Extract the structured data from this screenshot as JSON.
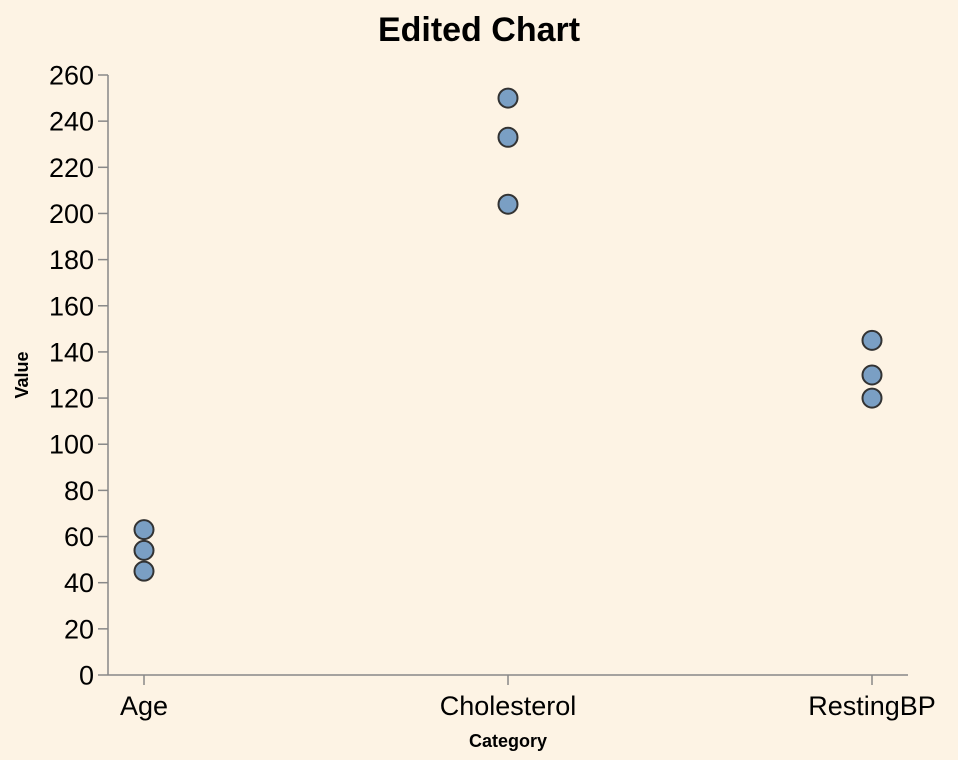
{
  "chart_data": {
    "type": "scatter",
    "title": "Edited Chart",
    "xlabel": "Category",
    "ylabel": "Value",
    "categories": [
      "Age",
      "Cholesterol",
      "RestingBP"
    ],
    "ylim": [
      0,
      260
    ],
    "yticks": [
      0,
      20,
      40,
      60,
      80,
      100,
      120,
      140,
      160,
      180,
      200,
      220,
      240,
      260
    ],
    "points": [
      {
        "x": "Age",
        "y": 45
      },
      {
        "x": "Age",
        "y": 54
      },
      {
        "x": "Age",
        "y": 63
      },
      {
        "x": "Cholesterol",
        "y": 204
      },
      {
        "x": "Cholesterol",
        "y": 233
      },
      {
        "x": "Cholesterol",
        "y": 250
      },
      {
        "x": "RestingBP",
        "y": 120
      },
      {
        "x": "RestingBP",
        "y": 130
      },
      {
        "x": "RestingBP",
        "y": 145
      }
    ],
    "grid": false,
    "point_fill": "#7a9fc4",
    "point_stroke": "#333333",
    "background": "#fdf3e4"
  }
}
